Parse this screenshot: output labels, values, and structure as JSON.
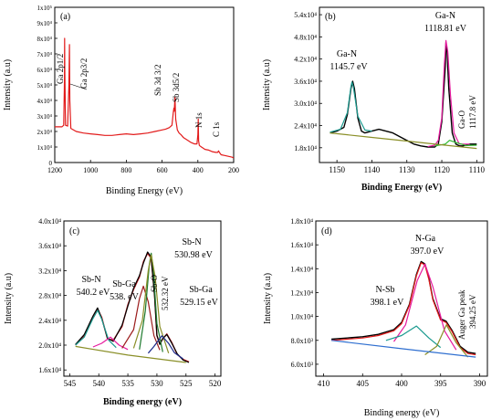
{
  "chart_data": [
    {
      "panel": "(a)",
      "type": "line",
      "xlabel": "Binding Energy (eV)",
      "ylabel": "Intensity (a.u)",
      "xlim": [
        1200,
        200
      ],
      "ylim": [
        0,
        100000
      ],
      "x_ticks": [
        "1200",
        "1000",
        "800",
        "600",
        "400",
        "200"
      ],
      "y_ticks": [
        "0",
        "1x10⁴",
        "2x10⁴",
        "3x10⁴",
        "4x10⁴",
        "5x10⁴",
        "6x10⁴",
        "7x10⁴",
        "8x10⁴",
        "9x10⁴",
        "1x10⁵"
      ],
      "series": [
        {
          "color": "#e21b1b",
          "x": [
            1200,
            1160,
            1150,
            1146,
            1145,
            1144,
            1140,
            1128,
            1121,
            1118,
            1116,
            1110,
            1080,
            1040,
            1000,
            960,
            920,
            880,
            840,
            800,
            760,
            720,
            680,
            640,
            600,
            580,
            560,
            545,
            538,
            534,
            532,
            528,
            524,
            515,
            505,
            495,
            480,
            460,
            440,
            420,
            405,
            400,
            398,
            396,
            392,
            380,
            360,
            340,
            320,
            300,
            290,
            284,
            280,
            270,
            250,
            230,
            210,
            200
          ],
          "y": [
            23000,
            23000,
            24000,
            52000,
            80000,
            60000,
            24000,
            23500,
            50000,
            76000,
            40000,
            22000,
            20000,
            19000,
            18500,
            18000,
            17500,
            17500,
            18000,
            18500,
            18000,
            18500,
            19000,
            20000,
            21000,
            21500,
            22500,
            24000,
            32000,
            35000,
            33000,
            42000,
            28000,
            21000,
            19000,
            18000,
            16000,
            14500,
            13000,
            12000,
            12000,
            18000,
            28000,
            14000,
            11000,
            10000,
            8500,
            8000,
            7000,
            6500,
            6500,
            7500,
            6500,
            5000,
            4500,
            4000,
            3500,
            3000
          ]
        }
      ],
      "annotations": [
        "Ga 2p1/2",
        "Ga 2p3/2",
        "Sb 3d 3/2",
        "Sb 3d5/2",
        "N 1s",
        "C 1s"
      ]
    },
    {
      "panel": "(b)",
      "type": "line",
      "xlabel": "Binding Energy (eV)",
      "ylabel": "Intensity (a.u)",
      "xlim": [
        1155,
        1108
      ],
      "ylim": [
        14000,
        56000
      ],
      "x_ticks": [
        "1150",
        "1140",
        "1130",
        "1120",
        "1110"
      ],
      "y_ticks": [
        "1.8x10⁴",
        "2.4x10⁴",
        "3.0x10⁴",
        "3.6x10⁴",
        "4.2x10⁴",
        "4.8x10⁴",
        "5.4x10⁴"
      ],
      "series": [
        {
          "color": "#000000",
          "x": [
            1152,
            1150,
            1148,
            1147,
            1146,
            1145.5,
            1145,
            1144,
            1143,
            1142,
            1140,
            1138,
            1136,
            1134,
            1132,
            1130,
            1128,
            1126,
            1124,
            1122,
            1121,
            1120,
            1119,
            1118.8,
            1118.5,
            1118,
            1117,
            1116,
            1115,
            1114,
            1112,
            1110
          ],
          "y": [
            22000,
            22500,
            23500,
            27000,
            34000,
            36000,
            34000,
            26000,
            22500,
            22000,
            22500,
            23000,
            22500,
            22000,
            21000,
            20000,
            19000,
            18500,
            18200,
            18200,
            19000,
            25000,
            40000,
            46500,
            44000,
            34000,
            22000,
            19000,
            18500,
            18500,
            19000,
            19000
          ]
        },
        {
          "color": "#1a9a8f",
          "x": [
            1152,
            1149,
            1147,
            1146,
            1145.7,
            1145.3,
            1144,
            1142,
            1140
          ],
          "y": [
            22200,
            23000,
            27500,
            34500,
            35800,
            34500,
            26500,
            22800,
            22500
          ]
        },
        {
          "color": "#e6199e",
          "x": [
            1124,
            1122,
            1121,
            1120,
            1119.3,
            1118.81,
            1118.3,
            1117.5,
            1116.5,
            1115,
            1112
          ],
          "y": [
            18300,
            18700,
            20000,
            26000,
            40000,
            47000,
            44000,
            32000,
            22000,
            19000,
            19000
          ]
        },
        {
          "color": "#2eb82e",
          "x": [
            1122,
            1119,
            1117.8,
            1116,
            1113,
            1110
          ],
          "y": [
            18500,
            19000,
            20000,
            19400,
            18600,
            18700
          ]
        },
        {
          "color": "#8a8f28",
          "x": [
            1152,
            1140,
            1130,
            1120,
            1110
          ],
          "y": [
            22000,
            20800,
            19800,
            18800,
            17800
          ]
        }
      ],
      "annotations": [
        {
          "label": "Ga-N",
          "value": "1145.7 eV"
        },
        {
          "label": "Ga-N",
          "value": "1118.81 eV"
        },
        {
          "label": "Ga-O",
          "value": "1117.8 eV"
        }
      ]
    },
    {
      "panel": "(c)",
      "type": "line",
      "xlabel": "Binding energy (eV)",
      "ylabel": "Intensity (a.u)",
      "xlim": [
        546,
        519
      ],
      "ylim": [
        15000,
        40000
      ],
      "x_ticks": [
        "545",
        "540",
        "535",
        "530",
        "525",
        "520"
      ],
      "y_ticks": [
        "1.6x10⁴",
        "2.0x10⁴",
        "2.4x10⁴",
        "2.8x10⁴",
        "3.2x10⁴",
        "3.6x10⁴",
        "4.0x10⁴"
      ],
      "series": [
        {
          "color": "#c0141b",
          "x": [
            544,
            542.5,
            541,
            540.2,
            539.5,
            538.5,
            537.5,
            536,
            535,
            534,
            533,
            532.3,
            531.6,
            531,
            530.4,
            530,
            529.5,
            529,
            528.3,
            527.5,
            526.5,
            525.5,
            524.5
          ],
          "y": [
            20000,
            21500,
            24500,
            25800,
            24500,
            21000,
            20800,
            23000,
            26500,
            29000,
            31000,
            33500,
            34800,
            34000,
            28000,
            21500,
            20200,
            21000,
            21800,
            20500,
            18500,
            17700,
            17300
          ]
        },
        {
          "color": "#000000",
          "x": [
            544,
            542.5,
            541,
            540.2,
            539.5,
            538.5,
            537.5,
            536,
            535,
            534,
            533,
            532.3,
            531.6,
            531,
            530.4,
            530,
            529.5,
            529,
            528.3,
            527.5,
            526.5,
            525.5,
            524.5
          ],
          "y": [
            20100,
            21700,
            24700,
            26000,
            24300,
            21100,
            20600,
            23200,
            26300,
            29200,
            31200,
            33300,
            35000,
            34200,
            27800,
            21600,
            20100,
            21100,
            21700,
            20400,
            18600,
            17600,
            17200
          ]
        },
        {
          "color": "#1a9a8f",
          "x": [
            544,
            542.5,
            541,
            540.2,
            539.5,
            538.3,
            537
          ],
          "y": [
            20000,
            21300,
            24300,
            25600,
            24200,
            20800,
            19600
          ]
        },
        {
          "color": "#e6199e",
          "x": [
            541,
            539.5,
            538,
            536.5,
            535
          ],
          "y": [
            19700,
            20300,
            21300,
            20000,
            19300
          ]
        },
        {
          "color": "#9b1b1b",
          "x": [
            536,
            534,
            533,
            532.32,
            531.5,
            530.5,
            529.5
          ],
          "y": [
            19500,
            22500,
            27500,
            29500,
            27000,
            21500,
            19200
          ]
        },
        {
          "color": "#1e7a2e",
          "x": [
            533,
            532,
            531.3,
            530.98,
            530.6,
            530,
            529
          ],
          "y": [
            19300,
            25500,
            33000,
            34800,
            32000,
            23500,
            18900
          ]
        },
        {
          "color": "#8a8f28",
          "x": [
            534,
            532.5,
            531.5,
            530.98,
            530.3,
            529.5,
            528
          ],
          "y": [
            19500,
            24000,
            32000,
            34500,
            31000,
            23000,
            18700
          ]
        },
        {
          "color": "#1c2a8a",
          "x": [
            531.5,
            530.5,
            529.15,
            528,
            527,
            525.5
          ],
          "y": [
            18700,
            19800,
            21500,
            20300,
            18800,
            17800
          ]
        },
        {
          "color": "#8a8f28",
          "x": [
            544,
            535,
            525
          ],
          "y": [
            19800,
            18400,
            17200
          ]
        }
      ],
      "annotations": [
        {
          "label": "Sb-N",
          "value": "540.2 eV"
        },
        {
          "label": "Sb-Ga",
          "value": "538. eV"
        },
        {
          "label": "Sb-O",
          "value": "532.32 eV"
        },
        {
          "label": "Sb-N",
          "value": "530.98 eV"
        },
        {
          "label": "Sb-Ga",
          "value": "529.15 eV"
        }
      ]
    },
    {
      "panel": "(d)",
      "type": "line",
      "xlabel": "Binding energy (eV)",
      "ylabel": "Intensity (a.u)",
      "xlim": [
        411,
        389
      ],
      "ylim": [
        5000,
        18000
      ],
      "x_ticks": [
        "410",
        "405",
        "400",
        "395",
        "390"
      ],
      "y_ticks": [
        "6.0x10³",
        "8.0x10³",
        "1.0x10⁴",
        "1.2x10⁴",
        "1.4x10⁴",
        "1.6x10⁴",
        "1.8x10⁴"
      ],
      "series": [
        {
          "color": "#000000",
          "x": [
            409,
            407,
            405,
            403,
            401,
            400,
            399,
            398.1,
            397.5,
            397,
            396.5,
            396,
            395,
            394.3,
            393.5,
            392.5,
            391.5,
            390.5
          ],
          "y": [
            8100,
            8200,
            8300,
            8500,
            8900,
            9500,
            11000,
            13500,
            14600,
            14400,
            13200,
            11500,
            9800,
            9600,
            8800,
            7500,
            7000,
            6900
          ]
        },
        {
          "color": "#e21b1b",
          "x": [
            409,
            407,
            405,
            403,
            401,
            400,
            399,
            398.1,
            397.5,
            397,
            396.5,
            396,
            395,
            394.3,
            393.5,
            392.5,
            391.5,
            390.5
          ],
          "y": [
            8000,
            8100,
            8200,
            8400,
            8800,
            9400,
            10900,
            13400,
            14500,
            14300,
            13100,
            11400,
            9700,
            9500,
            8700,
            7400,
            6900,
            6800
          ]
        },
        {
          "color": "#e6199e",
          "x": [
            401,
            399.5,
            398,
            397,
            396,
            394.5,
            393
          ],
          "y": [
            7900,
            9300,
            13000,
            14400,
            12500,
            8800,
            7200
          ]
        },
        {
          "color": "#1a9a8f",
          "x": [
            402,
            400,
            398.1,
            396.5,
            395
          ],
          "y": [
            8000,
            8400,
            9200,
            8200,
            7400
          ]
        },
        {
          "color": "#8a8f28",
          "x": [
            397,
            395.5,
            394.25,
            393,
            391.5
          ],
          "y": [
            6800,
            7500,
            9300,
            7800,
            6600
          ]
        },
        {
          "color": "#2f6fd0",
          "x": [
            409,
            400,
            390.5
          ],
          "y": [
            8000,
            7300,
            6600
          ]
        }
      ],
      "annotations": [
        {
          "label": "N-Ga",
          "value": "397.0 eV"
        },
        {
          "label": "N-Sb",
          "value": "398.1 eV"
        },
        {
          "label": "Auger Ga peak",
          "value": "394.25 eV"
        }
      ]
    }
  ]
}
